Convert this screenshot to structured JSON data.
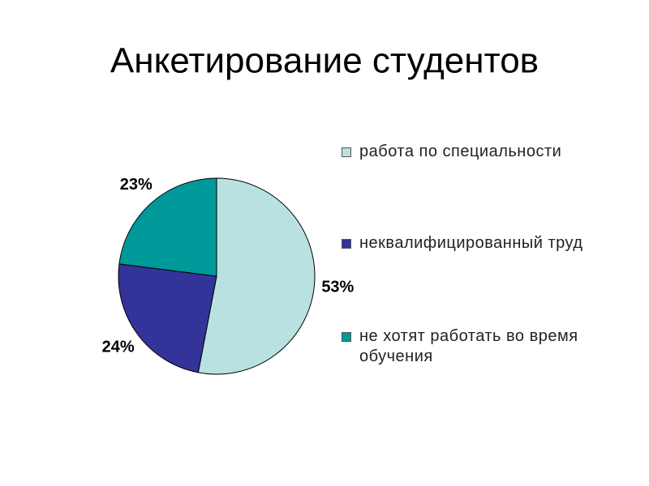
{
  "chart_data": {
    "type": "pie",
    "title": "Анкетирование студентов",
    "categories": [
      "работа по специальности",
      "неквалифицированный труд",
      "не хотят работать во время обучения"
    ],
    "values": [
      53,
      24,
      23
    ],
    "value_labels": [
      "53%",
      "24%",
      "23%"
    ],
    "colors": [
      "#b9e1e1",
      "#333399",
      "#009999"
    ]
  }
}
